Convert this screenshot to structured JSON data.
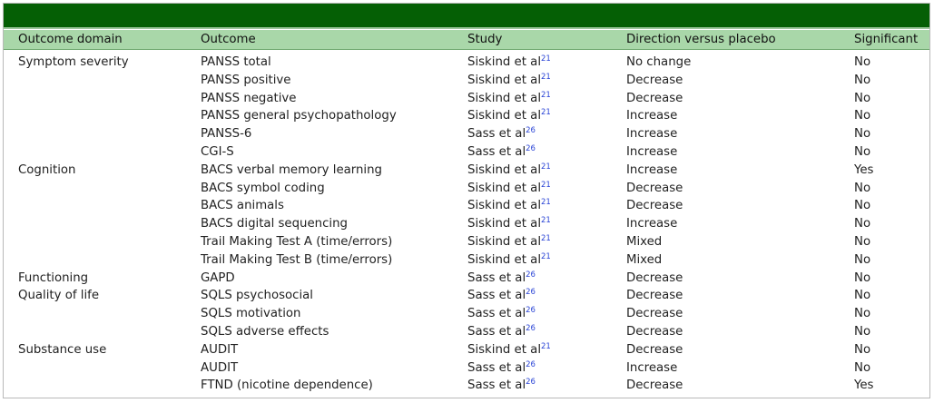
{
  "headers": [
    "Outcome domain",
    "Outcome",
    "Study",
    "Direction versus placebo",
    "Significant"
  ],
  "rows": [
    {
      "domain": "Symptom severity",
      "outcome": "PANSS total",
      "study": "Siskind et al",
      "ref": "21",
      "direction": "No change",
      "significant": "No"
    },
    {
      "domain": "",
      "outcome": "PANSS positive",
      "study": "Siskind et al",
      "ref": "21",
      "direction": "Decrease",
      "significant": "No"
    },
    {
      "domain": "",
      "outcome": "PANSS negative",
      "study": "Siskind et al",
      "ref": "21",
      "direction": "Decrease",
      "significant": "No"
    },
    {
      "domain": "",
      "outcome": "PANSS general psychopathology",
      "study": "Siskind et al",
      "ref": "21",
      "direction": "Increase",
      "significant": "No"
    },
    {
      "domain": "",
      "outcome": "PANSS-6",
      "study": "Sass et al",
      "ref": "26",
      "direction": "Increase",
      "significant": "No"
    },
    {
      "domain": "",
      "outcome": "CGI-S",
      "study": "Sass et al",
      "ref": "26",
      "direction": "Increase",
      "significant": "No"
    },
    {
      "domain": "Cognition",
      "outcome": "BACS verbal memory learning",
      "study": "Siskind et al",
      "ref": "21",
      "direction": "Increase",
      "significant": "Yes"
    },
    {
      "domain": "",
      "outcome": "BACS symbol coding",
      "study": "Siskind et al",
      "ref": "21",
      "direction": "Decrease",
      "significant": "No"
    },
    {
      "domain": "",
      "outcome": "BACS animals",
      "study": "Siskind et al",
      "ref": "21",
      "direction": "Decrease",
      "significant": "No"
    },
    {
      "domain": "",
      "outcome": "BACS digital sequencing",
      "study": "Siskind et al",
      "ref": "21",
      "direction": "Increase",
      "significant": "No"
    },
    {
      "domain": "",
      "outcome": "Trail Making Test A (time/errors)",
      "study": "Siskind et al",
      "ref": "21",
      "direction": "Mixed",
      "significant": "No"
    },
    {
      "domain": "",
      "outcome": "Trail Making Test B (time/errors)",
      "study": "Siskind et al",
      "ref": "21",
      "direction": "Mixed",
      "significant": "No"
    },
    {
      "domain": "Functioning",
      "outcome": "GAPD",
      "study": "Sass et al",
      "ref": "26",
      "direction": "Decrease",
      "significant": "No"
    },
    {
      "domain": "Quality of life",
      "outcome": "SQLS psychosocial",
      "study": "Sass et al",
      "ref": "26",
      "direction": "Decrease",
      "significant": "No"
    },
    {
      "domain": "",
      "outcome": "SQLS motivation",
      "study": "Sass et al",
      "ref": "26",
      "direction": "Decrease",
      "significant": "No"
    },
    {
      "domain": "",
      "outcome": "SQLS adverse effects",
      "study": "Sass et al",
      "ref": "26",
      "direction": "Decrease",
      "significant": "No"
    },
    {
      "domain": "Substance use",
      "outcome": "AUDIT",
      "study": "Siskind et al",
      "ref": "21",
      "direction": "Decrease",
      "significant": "No"
    },
    {
      "domain": "",
      "outcome": "AUDIT",
      "study": "Sass et al",
      "ref": "26",
      "direction": "Increase",
      "significant": "No"
    },
    {
      "domain": "",
      "outcome": "FTND (nicotine dependence)",
      "study": "Sass et al",
      "ref": "26",
      "direction": "Decrease",
      "significant": "Yes"
    }
  ],
  "colors": {
    "title_bar": "#055f05",
    "header_row": "#a9d7a9",
    "reference_link": "#2b45d6"
  }
}
